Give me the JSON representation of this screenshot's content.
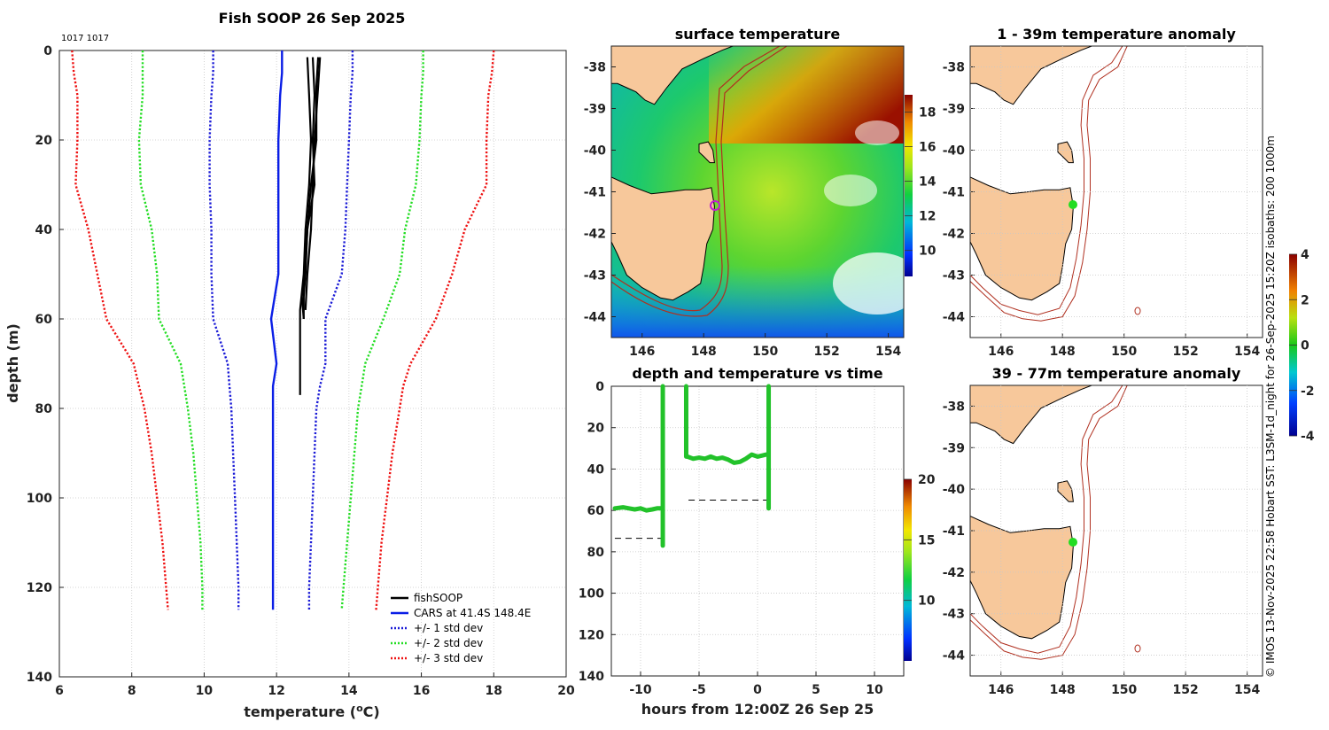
{
  "page": {
    "figure_title": "Fish SOOP 26 Sep 2025",
    "profile_ids": "1017 1017",
    "credit": "© IMOS 13-Nov-2025 22:58 Hobart SST: L3SM-1d_night for 26-Sep-2025 15:20Z isobaths: 200  1000m"
  },
  "colors": {
    "land": "#f7c89b",
    "cars": "#0a1ee6",
    "std1": "#1a1ad6",
    "std2": "#22dd22",
    "std3": "#ee1111",
    "fishsoop": "#000000",
    "trace": "#22c22a",
    "isobath": "#b03020",
    "track": "#c01fd0"
  },
  "chart_data": [
    {
      "id": "profile",
      "type": "line",
      "title": "Fish SOOP 26 Sep 2025",
      "xlabel": "temperature (°C)",
      "xlabel_main": "temperature (",
      "xlabel_unit": "o",
      "xlabel_tail": "C)",
      "ylabel": "depth (m)",
      "xlim": [
        6,
        20
      ],
      "ylim": [
        0,
        140
      ],
      "y_reversed": true,
      "xticks": [
        "6",
        "8",
        "10",
        "12",
        "14",
        "16",
        "18",
        "20"
      ],
      "yticks": [
        "0",
        "20",
        "40",
        "60",
        "80",
        "100",
        "120",
        "140"
      ],
      "legend": [
        "fishSOOP",
        "CARS at 41.4S 148.4E",
        "+/- 1 std dev",
        "+/- 2 std dev",
        "+/- 3 std dev"
      ],
      "depth": [
        0,
        5,
        10,
        20,
        30,
        40,
        50,
        60,
        70,
        75,
        80,
        90,
        100,
        110,
        120,
        125
      ],
      "cars": [
        12.15,
        12.15,
        12.1,
        12.05,
        12.05,
        12.05,
        12.05,
        11.85,
        12.0,
        11.9,
        11.9,
        11.9,
        11.9,
        11.9,
        11.9,
        11.9
      ],
      "std1_lo": [
        10.25,
        10.25,
        10.2,
        10.15,
        10.15,
        10.2,
        10.2,
        10.25,
        10.65,
        10.7,
        10.75,
        10.8,
        10.85,
        10.9,
        10.95,
        10.95
      ],
      "std1_hi": [
        14.1,
        14.1,
        14.05,
        14.0,
        13.95,
        13.9,
        13.8,
        13.35,
        13.35,
        13.2,
        13.1,
        13.05,
        13.0,
        12.95,
        12.9,
        12.9
      ],
      "std2_lo": [
        8.3,
        8.3,
        8.3,
        8.2,
        8.25,
        8.55,
        8.7,
        8.75,
        9.35,
        9.45,
        9.55,
        9.7,
        9.8,
        9.9,
        9.95,
        9.95
      ],
      "std2_hi": [
        16.05,
        16.05,
        16.0,
        15.95,
        15.85,
        15.55,
        15.4,
        14.95,
        14.45,
        14.35,
        14.25,
        14.15,
        14.05,
        13.95,
        13.85,
        13.8
      ],
      "std3_lo": [
        6.35,
        6.4,
        6.5,
        6.5,
        6.45,
        6.8,
        7.05,
        7.3,
        8.05,
        8.2,
        8.35,
        8.55,
        8.7,
        8.85,
        8.95,
        9.0
      ],
      "std3_hi": [
        18.0,
        17.95,
        17.85,
        17.8,
        17.8,
        17.2,
        16.85,
        16.4,
        15.7,
        15.5,
        15.4,
        15.2,
        15.05,
        14.9,
        14.8,
        14.75
      ],
      "fishsoop": [
        {
          "t": [
            12.85,
            12.9,
            12.95,
            12.9,
            12.8,
            12.75,
            12.65,
            12.65
          ],
          "d": [
            1.5,
            10,
            20,
            30,
            40,
            50,
            58,
            77
          ]
        },
        {
          "t": [
            13.0,
            13.05,
            13.0,
            13.05,
            12.85,
            12.8,
            12.75,
            12.75
          ],
          "d": [
            1.5,
            10,
            20,
            30,
            40,
            50,
            55,
            60
          ]
        },
        {
          "t": [
            13.15,
            13.1,
            13.1,
            12.95,
            12.85,
            12.8,
            12.7,
            12.75
          ],
          "d": [
            1.5,
            8,
            20,
            30,
            40,
            48,
            55,
            60
          ]
        },
        {
          "t": [
            13.2,
            13.15,
            13.05,
            13.0,
            12.95,
            12.85,
            12.8
          ],
          "d": [
            1.5,
            8,
            20,
            30,
            40,
            50,
            58
          ]
        }
      ]
    },
    {
      "id": "time",
      "type": "scatter",
      "title": "depth and temperature vs time",
      "xlabel": "hours from 12:00Z 26 Sep 25",
      "xlim": [
        -12.5,
        12.5
      ],
      "ylim": [
        0,
        140
      ],
      "y_reversed": true,
      "xticks": [
        "-10",
        "-5",
        "0",
        "5",
        "10"
      ],
      "yticks": [
        "0",
        "20",
        "40",
        "60",
        "80",
        "100",
        "120",
        "140"
      ],
      "colorbar": {
        "min": 5,
        "max": 20,
        "ticks": [
          "10",
          "15",
          "20"
        ]
      },
      "casts": [
        {
          "t": [
            -12.2,
            -11.5,
            -11.0,
            -10.5,
            -10.0,
            -9.5,
            -9.0,
            -8.6,
            -8.25
          ],
          "d": [
            59,
            58.5,
            59,
            59.5,
            59,
            60,
            59.5,
            59,
            59
          ]
        },
        {
          "t": [
            -6.0,
            -5.5,
            -5.0,
            -4.5,
            -4.0,
            -3.5,
            -3.0,
            -2.5,
            -2.0,
            -1.5,
            -1.0,
            -0.5,
            0.0,
            0.4,
            0.75
          ],
          "d": [
            34,
            35,
            34.5,
            35,
            34,
            35,
            34.5,
            35.5,
            37,
            36.5,
            35,
            33,
            34,
            33.5,
            33
          ]
        }
      ],
      "verticals": [
        {
          "t": -8.1,
          "from": 0,
          "to": 77
        },
        {
          "t": -6.1,
          "from": 0,
          "to": 34
        },
        {
          "t": 0.95,
          "from": 0,
          "to": 59
        }
      ],
      "bottom_dashes": [
        {
          "t0": -12.2,
          "t1": -8.1,
          "d": 73.5
        },
        {
          "t0": -5.9,
          "t1": 0.9,
          "d": 55
        }
      ]
    },
    {
      "id": "surface",
      "type": "heatmap",
      "title": "surface temperature",
      "xlim": [
        145,
        154.5
      ],
      "ylim": [
        -44.5,
        -37.5
      ],
      "xticks": [
        "146",
        "148",
        "150",
        "152",
        "154"
      ],
      "yticks": [
        "-38",
        "-39",
        "-40",
        "-41",
        "-42",
        "-43",
        "-44"
      ],
      "colorbar": {
        "min": 8.5,
        "max": 19,
        "ticks": [
          "10",
          "12",
          "14",
          "16",
          "18"
        ]
      },
      "cast_location": {
        "lon": 148.35,
        "lat": -41.4
      }
    },
    {
      "id": "anom1",
      "type": "heatmap",
      "title": "1 - 39m temperature anomaly",
      "xlim": [
        145,
        154.5
      ],
      "ylim": [
        -44.5,
        -37.5
      ],
      "xticks": [
        "146",
        "148",
        "150",
        "152",
        "154"
      ],
      "yticks": [
        "-38",
        "-39",
        "-40",
        "-41",
        "-42",
        "-43",
        "-44"
      ],
      "colorbar": {
        "min": -4,
        "max": 4,
        "ticks": [
          "-4",
          "-2",
          "0",
          "2",
          "4"
        ]
      },
      "cast_location": {
        "lon": 148.35,
        "lat": -41.4
      }
    },
    {
      "id": "anom2",
      "type": "heatmap",
      "title": "39 - 77m temperature anomaly",
      "xlim": [
        145,
        154.5
      ],
      "ylim": [
        -44.5,
        -37.5
      ],
      "xticks": [
        "146",
        "148",
        "150",
        "152",
        "154"
      ],
      "yticks": [
        "-38",
        "-39",
        "-40",
        "-41",
        "-42",
        "-43",
        "-44"
      ],
      "cast_location": {
        "lon": 148.35,
        "lat": -41.4
      }
    }
  ]
}
